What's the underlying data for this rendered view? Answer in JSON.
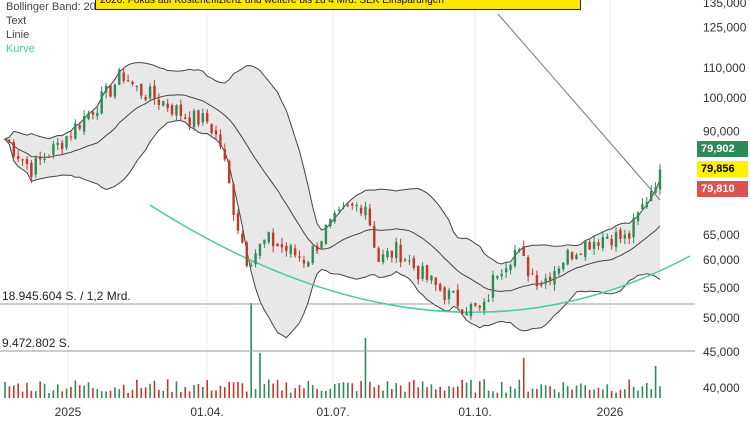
{
  "legend": {
    "bollinger": "Bollinger Band: 20",
    "text": "Text",
    "line": "Linie",
    "curve": "Kurve"
  },
  "annotation_text": "2026: Fokus auf Kosteneffizienz und weitere bis zu 4 Mrd. SEK Einsparungen",
  "volume_labels": {
    "upper": "18.945.604 S. / 1,2 Mrd.",
    "lower": "9.472.802 S."
  },
  "price_tags": [
    {
      "label": "79,902",
      "color": "#2e8b57",
      "text_color": "#ffffff"
    },
    {
      "label": "79,856",
      "color": "#fff200",
      "text_color": "#000000"
    },
    {
      "label": "79,810",
      "color": "#d9534f",
      "text_color": "#ffffff"
    }
  ],
  "colors": {
    "up": "#2e8b57",
    "down": "#c0392b",
    "band_fill": "#e8e8e8",
    "band_line": "#444444",
    "curve": "#4cc9a0"
  },
  "chart_data": {
    "type": "candlestick",
    "y_scale": "log",
    "ylim": [
      38000,
      140000
    ],
    "y_ticks": [
      {
        "value": 135000,
        "label": "135,000"
      },
      {
        "value": 125000,
        "label": "125,000"
      },
      {
        "value": 110000,
        "label": "110,000"
      },
      {
        "value": 100000,
        "label": "100,000"
      },
      {
        "value": 90000,
        "label": "90,000"
      },
      {
        "value": 65000,
        "label": "65,000"
      },
      {
        "value": 60000,
        "label": "60,000"
      },
      {
        "value": 55000,
        "label": "55,000"
      },
      {
        "value": 50000,
        "label": "50,000"
      },
      {
        "value": 45000,
        "label": "45,000"
      },
      {
        "value": 40000,
        "label": "40,000"
      }
    ],
    "x_labels": [
      "2025",
      "01.04.",
      "01.07.",
      "01.10.",
      "2026"
    ],
    "close_keypoints": [
      {
        "t": 0.0,
        "v": 88000
      },
      {
        "t": 0.04,
        "v": 80000
      },
      {
        "t": 0.08,
        "v": 86000
      },
      {
        "t": 0.12,
        "v": 94000
      },
      {
        "t": 0.15,
        "v": 100000
      },
      {
        "t": 0.18,
        "v": 108000
      },
      {
        "t": 0.2,
        "v": 103000
      },
      {
        "t": 0.24,
        "v": 99000
      },
      {
        "t": 0.28,
        "v": 94000
      },
      {
        "t": 0.31,
        "v": 93000
      },
      {
        "t": 0.33,
        "v": 86000
      },
      {
        "t": 0.35,
        "v": 70000
      },
      {
        "t": 0.37,
        "v": 60000
      },
      {
        "t": 0.4,
        "v": 64000
      },
      {
        "t": 0.43,
        "v": 62000
      },
      {
        "t": 0.46,
        "v": 60000
      },
      {
        "t": 0.49,
        "v": 66000
      },
      {
        "t": 0.52,
        "v": 70000
      },
      {
        "t": 0.55,
        "v": 72000
      },
      {
        "t": 0.57,
        "v": 60000
      },
      {
        "t": 0.6,
        "v": 62000
      },
      {
        "t": 0.63,
        "v": 58000
      },
      {
        "t": 0.66,
        "v": 55000
      },
      {
        "t": 0.7,
        "v": 52000
      },
      {
        "t": 0.73,
        "v": 51000
      },
      {
        "t": 0.75,
        "v": 58000
      },
      {
        "t": 0.78,
        "v": 62000
      },
      {
        "t": 0.8,
        "v": 58000
      },
      {
        "t": 0.82,
        "v": 56000
      },
      {
        "t": 0.85,
        "v": 60000
      },
      {
        "t": 0.88,
        "v": 63000
      },
      {
        "t": 0.92,
        "v": 65000
      },
      {
        "t": 0.95,
        "v": 64000
      },
      {
        "t": 0.97,
        "v": 70000
      },
      {
        "t": 1.0,
        "v": 79856
      }
    ],
    "last_value": 79856,
    "volume_reference_lines": [
      18945604,
      9472802
    ]
  }
}
